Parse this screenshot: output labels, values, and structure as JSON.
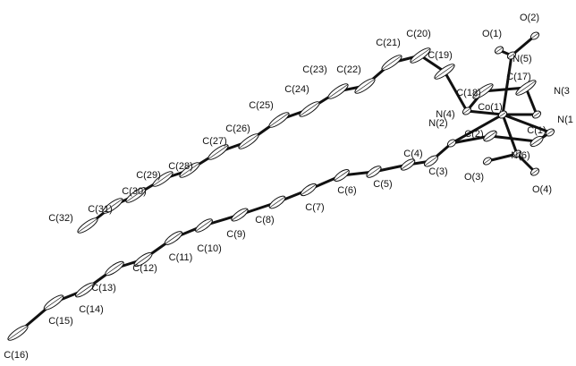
{
  "atoms": [
    "C(1)",
    "C(2)",
    "C(3)",
    "C(4)",
    "C(5)",
    "C(6)",
    "C(7)",
    "C(8)",
    "C(9)",
    "C(10)",
    "C(11)",
    "C(12)",
    "C(13)",
    "C(14)",
    "C(15)",
    "C(16)",
    "C(17)",
    "C(18)",
    "C(19)",
    "C(20)",
    "C(21)",
    "C(22)",
    "C(23)",
    "C(24)",
    "C(25)",
    "C(26)",
    "C(27)",
    "C(28)",
    "C(29)",
    "C(30)",
    "C(31)",
    "C(32)",
    "N(1",
    "N(2)",
    "N(3",
    "N(4)",
    "N(5)",
    "N(6)",
    "Co(1)",
    "O(1)",
    "O(2)",
    "O(3)",
    "O(4)"
  ]
}
